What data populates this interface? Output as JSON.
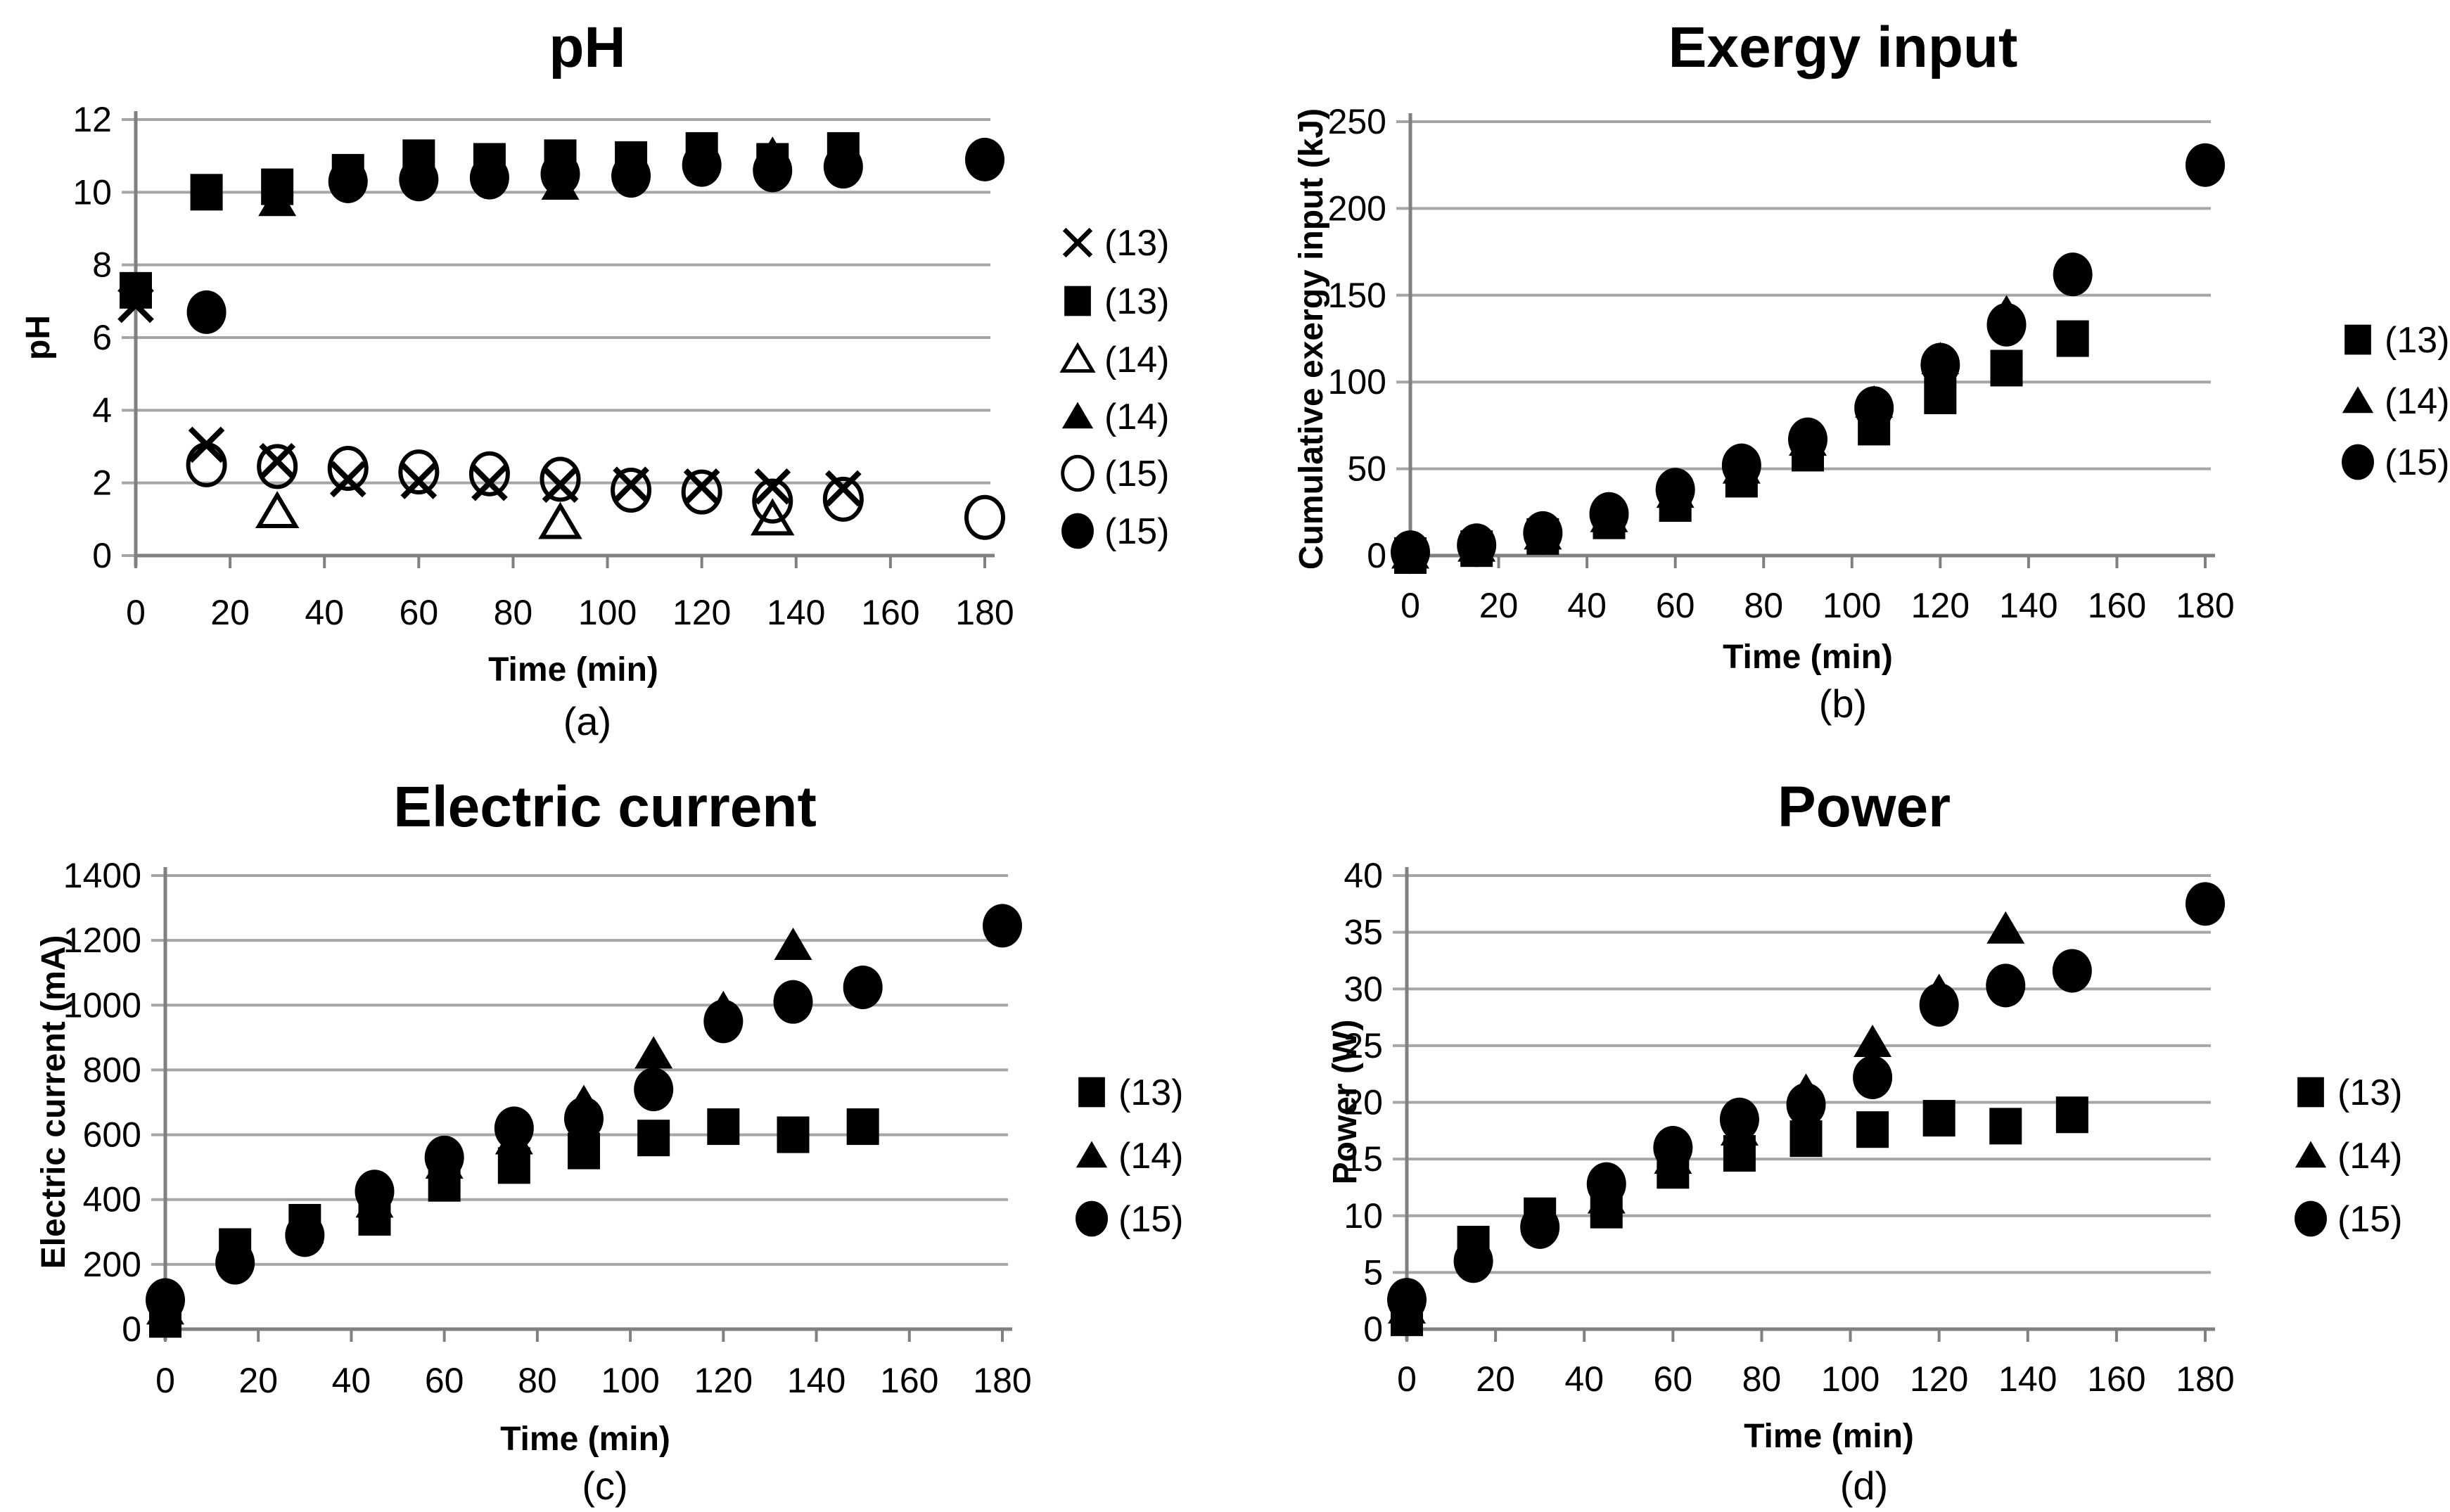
{
  "figure": {
    "background": "#ffffff",
    "colors": {
      "marker": "#000000",
      "grid": "#a6a6a6",
      "axis": "#808080",
      "text": "#000000"
    }
  },
  "chart_data": [
    {
      "id": "a",
      "type": "scatter",
      "title": "pH",
      "xlabel": "Time (min)",
      "ylabel": "pH",
      "caption": "(a)",
      "xlim": [
        0,
        180
      ],
      "ylim": [
        0,
        12
      ],
      "xticks": [
        0,
        20,
        40,
        60,
        80,
        100,
        120,
        140,
        160,
        180
      ],
      "yticks": [
        0,
        2,
        4,
        6,
        8,
        10,
        12
      ],
      "grid": true,
      "legend_position": "right",
      "series": [
        {
          "legend_label": "(13)",
          "marker": "x",
          "points": [
            [
              0,
              6.9
            ],
            [
              15,
              3.05
            ],
            [
              30,
              2.6
            ],
            [
              45,
              2.1
            ],
            [
              60,
              2.05
            ],
            [
              75,
              2.0
            ],
            [
              90,
              1.95
            ],
            [
              105,
              1.95
            ],
            [
              120,
              1.9
            ],
            [
              135,
              1.9
            ],
            [
              150,
              1.85
            ]
          ]
        },
        {
          "legend_label": "(13)",
          "marker": "square-filled",
          "points": [
            [
              0,
              7.3
            ],
            [
              15,
              10.0
            ],
            [
              30,
              10.15
            ],
            [
              45,
              10.55
            ],
            [
              60,
              10.95
            ],
            [
              75,
              10.85
            ],
            [
              90,
              10.95
            ],
            [
              105,
              10.9
            ],
            [
              120,
              11.15
            ],
            [
              135,
              10.85
            ],
            [
              150,
              11.15
            ]
          ]
        },
        {
          "legend_label": "(14)",
          "marker": "triangle-open",
          "points": [
            [
              30,
              1.2
            ],
            [
              90,
              0.9
            ],
            [
              135,
              1.0
            ]
          ]
        },
        {
          "legend_label": "(14)",
          "marker": "triangle-filled",
          "points": [
            [
              30,
              9.75
            ],
            [
              90,
              10.2
            ],
            [
              135,
              11.05
            ]
          ]
        },
        {
          "legend_label": "(15)",
          "marker": "circle-open",
          "points": [
            [
              15,
              2.5
            ],
            [
              30,
              2.45
            ],
            [
              45,
              2.4
            ],
            [
              60,
              2.3
            ],
            [
              75,
              2.25
            ],
            [
              90,
              2.1
            ],
            [
              105,
              1.8
            ],
            [
              120,
              1.75
            ],
            [
              135,
              1.5
            ],
            [
              150,
              1.55
            ],
            [
              180,
              1.05
            ]
          ]
        },
        {
          "legend_label": "(15)",
          "marker": "circle-filled",
          "points": [
            [
              15,
              6.7
            ],
            [
              45,
              10.3
            ],
            [
              60,
              10.35
            ],
            [
              75,
              10.4
            ],
            [
              90,
              10.5
            ],
            [
              105,
              10.45
            ],
            [
              120,
              10.75
            ],
            [
              135,
              10.6
            ],
            [
              150,
              10.7
            ],
            [
              180,
              10.9
            ]
          ]
        }
      ]
    },
    {
      "id": "b",
      "type": "scatter",
      "title": "Exergy input",
      "xlabel": "Time (min)",
      "ylabel": "Cumulative exergy input (kJ)",
      "caption": "(b)",
      "xlim": [
        0,
        180
      ],
      "ylim": [
        0,
        250
      ],
      "xticks": [
        0,
        20,
        40,
        60,
        80,
        100,
        120,
        140,
        160,
        180
      ],
      "yticks": [
        0,
        50,
        100,
        150,
        200,
        250
      ],
      "grid": true,
      "legend_position": "right",
      "series": [
        {
          "legend_label": "(13)",
          "marker": "square-filled",
          "points": [
            [
              0,
              0
            ],
            [
              15,
              4
            ],
            [
              30,
              11
            ],
            [
              45,
              20
            ],
            [
              60,
              30
            ],
            [
              75,
              44
            ],
            [
              90,
              59
            ],
            [
              105,
              74
            ],
            [
              120,
              92
            ],
            [
              135,
              108
            ],
            [
              150,
              125
            ]
          ]
        },
        {
          "legend_label": "(14)",
          "marker": "triangle-filled",
          "points": [
            [
              0,
              1
            ],
            [
              15,
              5
            ],
            [
              30,
              12
            ],
            [
              45,
              22
            ],
            [
              60,
              36
            ],
            [
              75,
              50
            ],
            [
              90,
              66
            ],
            [
              105,
              88
            ],
            [
              120,
              113
            ],
            [
              135,
              140
            ]
          ]
        },
        {
          "legend_label": "(15)",
          "marker": "circle-filled",
          "points": [
            [
              0,
              2
            ],
            [
              15,
              6
            ],
            [
              30,
              13
            ],
            [
              45,
              24
            ],
            [
              60,
              38
            ],
            [
              75,
              52
            ],
            [
              90,
              67
            ],
            [
              105,
              85
            ],
            [
              120,
              110
            ],
            [
              135,
              133
            ],
            [
              150,
              162
            ],
            [
              180,
              225
            ]
          ]
        }
      ]
    },
    {
      "id": "c",
      "type": "scatter",
      "title": "Electric current",
      "xlabel": "Time (min)",
      "ylabel": "Electric current (mA)",
      "caption": "(c)",
      "xlim": [
        0,
        180
      ],
      "ylim": [
        0,
        1400
      ],
      "xticks": [
        0,
        20,
        40,
        60,
        80,
        100,
        120,
        140,
        160,
        180
      ],
      "yticks": [
        0,
        200,
        400,
        600,
        800,
        1000,
        1200,
        1400
      ],
      "grid": true,
      "legend_position": "right",
      "series": [
        {
          "legend_label": "(13)",
          "marker": "square-filled",
          "points": [
            [
              0,
              30
            ],
            [
              15,
              255
            ],
            [
              30,
              330
            ],
            [
              45,
              345
            ],
            [
              60,
              450
            ],
            [
              75,
              505
            ],
            [
              90,
              550
            ],
            [
              105,
              590
            ],
            [
              120,
              625
            ],
            [
              135,
              600
            ],
            [
              150,
              625
            ]
          ]
        },
        {
          "legend_label": "(14)",
          "marker": "triangle-filled",
          "points": [
            [
              0,
              60
            ],
            [
              15,
              230
            ],
            [
              30,
              310
            ],
            [
              45,
              390
            ],
            [
              60,
              510
            ],
            [
              75,
              585
            ],
            [
              90,
              700
            ],
            [
              105,
              850
            ],
            [
              120,
              990
            ],
            [
              135,
              1185
            ]
          ]
        },
        {
          "legend_label": "(15)",
          "marker": "circle-filled",
          "points": [
            [
              0,
              90
            ],
            [
              15,
              205
            ],
            [
              30,
              290
            ],
            [
              45,
              425
            ],
            [
              60,
              530
            ],
            [
              75,
              620
            ],
            [
              90,
              650
            ],
            [
              105,
              740
            ],
            [
              120,
              950
            ],
            [
              135,
              1010
            ],
            [
              150,
              1055
            ],
            [
              180,
              1245
            ]
          ]
        }
      ]
    },
    {
      "id": "d",
      "type": "scatter",
      "title": "Power",
      "xlabel": "Time (min)",
      "ylabel": "Power (W)",
      "caption": "(d)",
      "xlim": [
        0,
        180
      ],
      "ylim": [
        0,
        40
      ],
      "xticks": [
        0,
        20,
        40,
        60,
        80,
        100,
        120,
        140,
        160,
        180
      ],
      "yticks": [
        0,
        5,
        10,
        15,
        20,
        25,
        30,
        35,
        40
      ],
      "grid": true,
      "legend_position": "right",
      "series": [
        {
          "legend_label": "(13)",
          "marker": "square-filled",
          "points": [
            [
              0,
              1
            ],
            [
              15,
              7.5
            ],
            [
              30,
              10
            ],
            [
              45,
              10.5
            ],
            [
              60,
              14
            ],
            [
              75,
              15.5
            ],
            [
              90,
              16.8
            ],
            [
              105,
              17.6
            ],
            [
              120,
              18.6
            ],
            [
              135,
              17.9
            ],
            [
              150,
              18.9
            ]
          ]
        },
        {
          "legend_label": "(14)",
          "marker": "triangle-filled",
          "points": [
            [
              0,
              1.8
            ],
            [
              15,
              7
            ],
            [
              30,
              9.6
            ],
            [
              45,
              11.5
            ],
            [
              60,
              15
            ],
            [
              75,
              17.5
            ],
            [
              90,
              21
            ],
            [
              105,
              25.3
            ],
            [
              120,
              29.8
            ],
            [
              135,
              35.3
            ]
          ]
        },
        {
          "legend_label": "(15)",
          "marker": "circle-filled",
          "points": [
            [
              0,
              2.6
            ],
            [
              15,
              6
            ],
            [
              30,
              9
            ],
            [
              45,
              12.8
            ],
            [
              60,
              16
            ],
            [
              75,
              18.5
            ],
            [
              90,
              19.8
            ],
            [
              105,
              22.2
            ],
            [
              120,
              28.6
            ],
            [
              135,
              30.3
            ],
            [
              150,
              31.6
            ],
            [
              180,
              37.5
            ]
          ]
        }
      ]
    }
  ]
}
